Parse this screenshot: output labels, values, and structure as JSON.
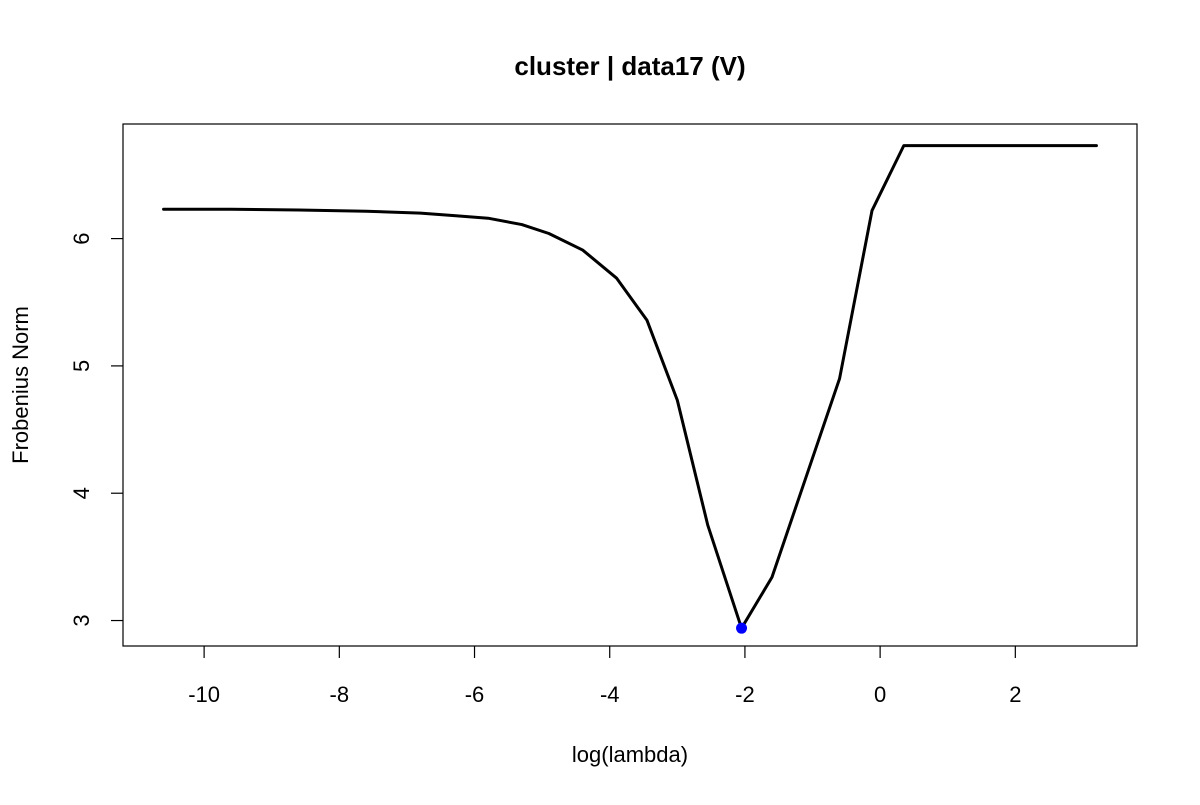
{
  "chart_data": {
    "type": "line",
    "title": "cluster | data17 (V)",
    "xlabel": "log(lambda)",
    "ylabel": "Frobenius Norm",
    "xlim": [
      -11.2,
      3.8
    ],
    "ylim": [
      2.8,
      6.9
    ],
    "xticks": [
      -10,
      -8,
      -6,
      -4,
      -2,
      0,
      2
    ],
    "yticks": [
      3,
      4,
      5,
      6
    ],
    "xtick_labels": [
      "-10",
      "-8",
      "-6",
      "-4",
      "-2",
      "0",
      "2"
    ],
    "ytick_labels": [
      "3",
      "4",
      "5",
      "6"
    ],
    "grid": false,
    "legend": "none",
    "series": [
      {
        "color": "#000000",
        "x": [
          -10.6,
          -9.6,
          -8.6,
          -7.6,
          -6.8,
          -6.3,
          -5.8,
          -5.3,
          -4.9,
          -4.4,
          -3.9,
          -3.45,
          -3.0,
          -2.55,
          -2.05,
          -1.6,
          -1.1,
          -0.6,
          -0.12,
          0.35,
          1.2,
          2.3,
          3.2
        ],
        "y": [
          6.23,
          6.23,
          6.225,
          6.215,
          6.2,
          6.18,
          6.16,
          6.11,
          6.04,
          5.91,
          5.69,
          5.36,
          4.73,
          3.75,
          2.94,
          3.34,
          4.12,
          4.9,
          6.22,
          6.73,
          6.73,
          6.73,
          6.73
        ]
      }
    ],
    "highlight_point": {
      "x": -2.05,
      "y": 2.94,
      "color": "#0000ff"
    }
  }
}
